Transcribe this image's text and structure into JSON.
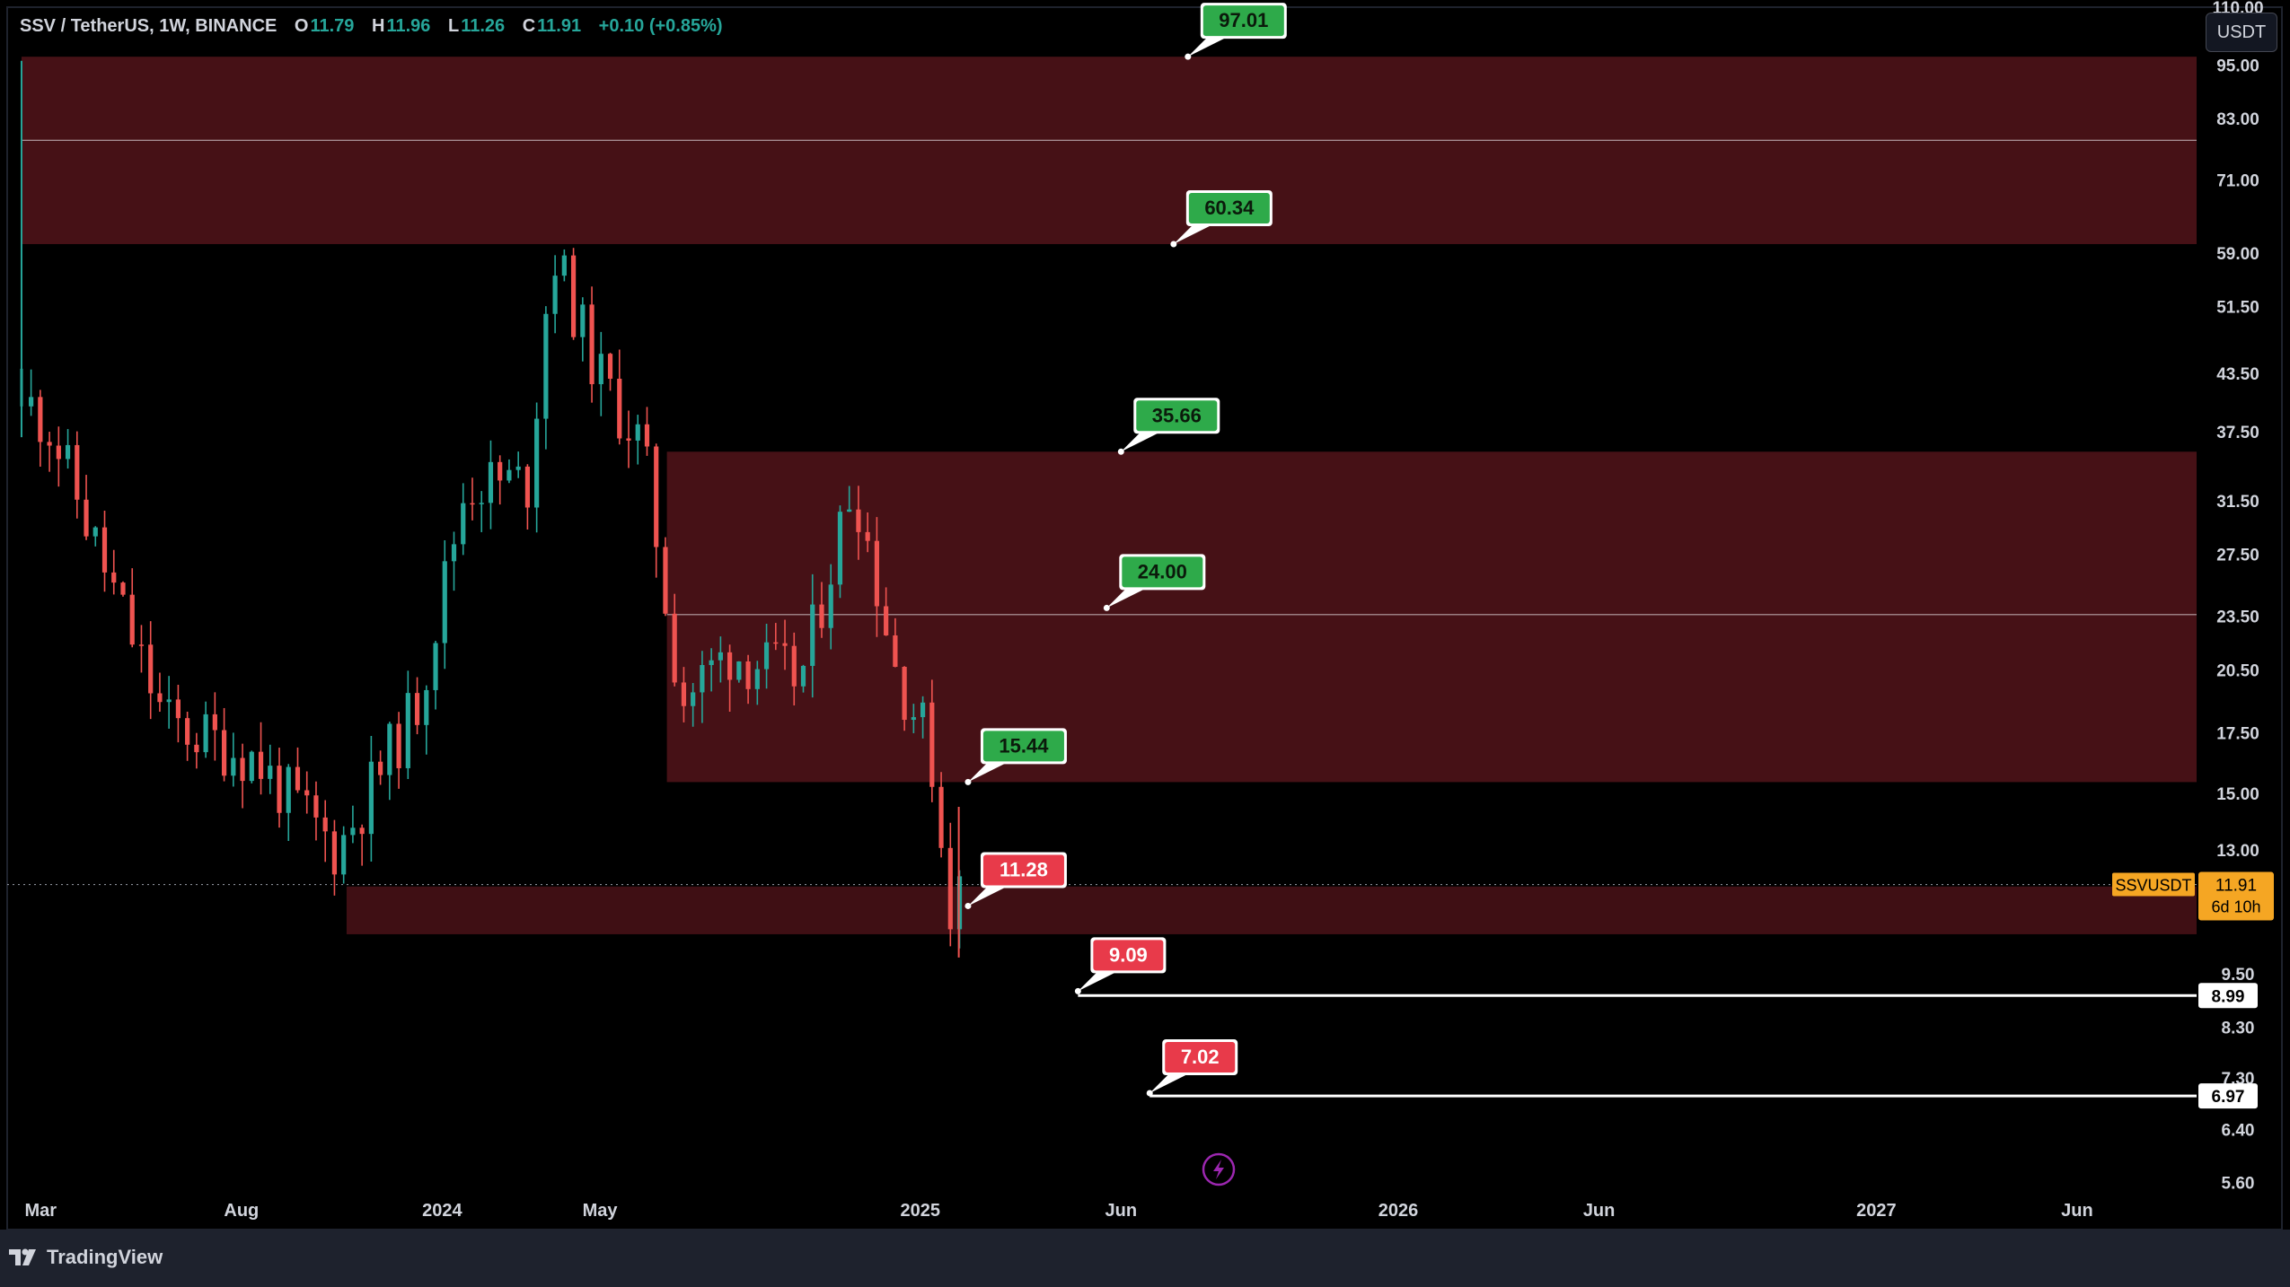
{
  "header": {
    "symbol": "SSV / TetherUS, 1W, BINANCE",
    "open_label": "O",
    "open": "11.79",
    "high_label": "H",
    "high": "11.96",
    "low_label": "L",
    "low": "11.26",
    "close_label": "C",
    "close": "11.91",
    "change": "+0.10 (+0.85%)"
  },
  "currency_button": "USDT",
  "brand": "TradingView",
  "price_badge": {
    "symbol": "SSVUSDT",
    "price": "11.91",
    "countdown": "6d 10h"
  },
  "colors": {
    "up": "#26a69a",
    "down": "#ef5350",
    "zone_fill": "#4a1217",
    "label_green": "#2eaa4a",
    "label_red": "#e83a4a"
  },
  "icons": {
    "lightning": "lightning-icon",
    "logo": "tradingview-logo-icon"
  },
  "chart_data": {
    "type": "candlestick",
    "scale": "log",
    "ylim": [
      5.2,
      112
    ],
    "y_ticks": [
      "110.00",
      "95.00",
      "83.00",
      "71.00",
      "59.00",
      "51.50",
      "43.50",
      "37.50",
      "31.50",
      "27.50",
      "23.50",
      "20.50",
      "17.50",
      "15.00",
      "13.00",
      "9.50",
      "8.30",
      "7.30",
      "6.40",
      "5.60"
    ],
    "x_ticks": [
      "Mar",
      "Aug",
      "2024",
      "May",
      "2025",
      "Jun",
      "2026",
      "Jun",
      "2027",
      "Jun"
    ],
    "x_tick_dates": [
      2023.16,
      2023.58,
      2024.0,
      2024.33,
      2025.0,
      2025.42,
      2026.0,
      2026.42,
      2027.0,
      2027.42
    ],
    "x_range": [
      2023.09,
      2027.67
    ],
    "price_line": 11.91,
    "zones": [
      {
        "from": 60.34,
        "to": 97.01,
        "start": 2023.12,
        "mid": 78.5
      },
      {
        "from": 15.44,
        "to": 35.66,
        "start": 2024.47,
        "mid": 23.6
      },
      {
        "from": 10.5,
        "to": 11.85,
        "start": 2023.8
      }
    ],
    "levels": [
      {
        "price": 8.99,
        "start": 2025.33,
        "label": "8.99"
      },
      {
        "price": 6.97,
        "start": 2025.48,
        "label": "6.97"
      }
    ],
    "callouts": [
      {
        "text": "97.01",
        "price": 97.01,
        "date": 2025.56,
        "color": "green"
      },
      {
        "text": "60.34",
        "price": 60.34,
        "date": 2025.53,
        "color": "green"
      },
      {
        "text": "35.66",
        "price": 35.66,
        "date": 2025.42,
        "color": "green"
      },
      {
        "text": "24.00",
        "price": 24.0,
        "date": 2025.39,
        "color": "green"
      },
      {
        "text": "15.44",
        "price": 15.44,
        "date": 2025.1,
        "color": "green"
      },
      {
        "text": "11.28",
        "price": 11.28,
        "date": 2025.1,
        "color": "red"
      },
      {
        "text": "9.09",
        "price": 9.09,
        "date": 2025.33,
        "color": "red"
      },
      {
        "text": "7.02",
        "price": 7.02,
        "date": 2025.48,
        "color": "red"
      }
    ],
    "ohlc_anchors": [
      {
        "date": 2023.14,
        "price": 40.0
      },
      {
        "date": 2023.18,
        "price": 38.0
      },
      {
        "date": 2023.3,
        "price": 26.0
      },
      {
        "date": 2023.42,
        "price": 18.0
      },
      {
        "date": 2023.6,
        "price": 16.5
      },
      {
        "date": 2023.78,
        "price": 13.0
      },
      {
        "date": 2023.95,
        "price": 19.0
      },
      {
        "date": 2024.05,
        "price": 33.0
      },
      {
        "date": 2024.18,
        "price": 33.0
      },
      {
        "date": 2024.23,
        "price": 60.0
      },
      {
        "date": 2024.32,
        "price": 44.0
      },
      {
        "date": 2024.42,
        "price": 36.0
      },
      {
        "date": 2024.5,
        "price": 19.0
      },
      {
        "date": 2024.6,
        "price": 21.5
      },
      {
        "date": 2024.75,
        "price": 20.0
      },
      {
        "date": 2024.86,
        "price": 33.5
      },
      {
        "date": 2024.95,
        "price": 20.5
      },
      {
        "date": 2025.02,
        "price": 17.0
      },
      {
        "date": 2025.06,
        "price": 11.28
      },
      {
        "date": 2025.09,
        "price": 11.91
      }
    ],
    "first_candle": {
      "date": 2023.12,
      "open": 40.0,
      "high": 96.0,
      "low": 37.0,
      "close": 44.0
    }
  }
}
